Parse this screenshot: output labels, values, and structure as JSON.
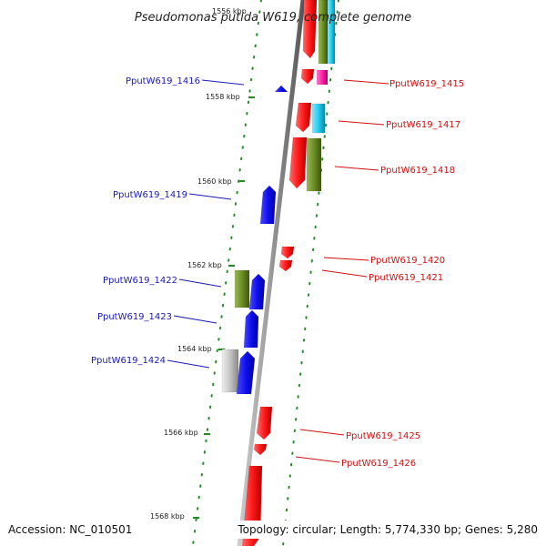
{
  "title": "Pseudomonas putida W619, complete genome",
  "accession": "Accession: NC_010501",
  "topology": "Topology: circular; Length: 5,774,330 bp; Genes: 5,280",
  "scale_ticks": [
    "1556 kbp",
    "1558 kbp",
    "1560 kbp",
    "1562 kbp",
    "1564 kbp",
    "1566 kbp",
    "1568 kbp"
  ],
  "colors": {
    "forward": "#ee1111",
    "reverse": "#1111ee",
    "olive": "#6b8e23",
    "cyan": "#22ccee",
    "magenta": "#ff22aa",
    "gray": "#bbbbbb",
    "backbone": "#888888",
    "dots": "#2a8a2a",
    "label_forward": "#d01010",
    "label_reverse": "#1a1ab5"
  },
  "genes_forward": [
    "PputW619_1415",
    "PputW619_1417",
    "PputW619_1418",
    "PputW619_1420",
    "PputW619_1421",
    "PputW619_1425",
    "PputW619_1426"
  ],
  "genes_reverse": [
    "PputW619_1416",
    "PputW619_1419",
    "PputW619_1422",
    "PputW619_1423",
    "PputW619_1424"
  ]
}
